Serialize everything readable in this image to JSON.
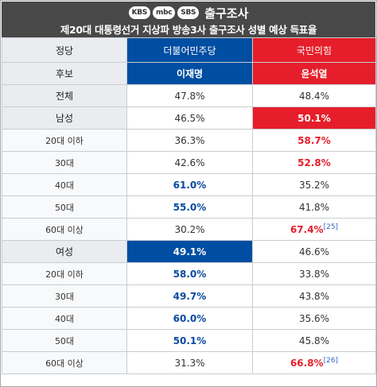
{
  "header": {
    "logos": [
      "KBS",
      "mbc",
      "SBS"
    ],
    "title": "출구조사",
    "subtitle": "제20대 대통령선거 지상파 방송3사 출구조사 성별 예상 득표율"
  },
  "columns": {
    "party_label": "정당",
    "candidate_label": "후보",
    "party_a": "더불어민주당",
    "party_b": "국민의힘",
    "candidate_a": "이재명",
    "candidate_b": "윤석열"
  },
  "rows": [
    {
      "label": "전체",
      "a": "47.8%",
      "b": "48.4%",
      "ref": ""
    },
    {
      "label": "남성",
      "a": "46.5%",
      "b": "50.1%",
      "ref": ""
    },
    {
      "label": "20대 이하",
      "a": "36.3%",
      "b": "58.7%",
      "ref": ""
    },
    {
      "label": "30대",
      "a": "42.6%",
      "b": "52.8%",
      "ref": ""
    },
    {
      "label": "40대",
      "a": "61.0%",
      "b": "35.2%",
      "ref": ""
    },
    {
      "label": "50대",
      "a": "55.0%",
      "b": "41.8%",
      "ref": ""
    },
    {
      "label": "60대 이상",
      "a": "30.2%",
      "b": "67.4%",
      "ref": "[25]"
    },
    {
      "label": "여성",
      "a": "49.1%",
      "b": "46.6%",
      "ref": ""
    },
    {
      "label": "20대 이하",
      "a": "58.0%",
      "b": "33.8%",
      "ref": ""
    },
    {
      "label": "30대",
      "a": "49.7%",
      "b": "43.8%",
      "ref": ""
    },
    {
      "label": "40대",
      "a": "60.0%",
      "b": "35.6%",
      "ref": ""
    },
    {
      "label": "50대",
      "a": "50.1%",
      "b": "45.8%",
      "ref": ""
    },
    {
      "label": "60대 이상",
      "a": "31.3%",
      "b": "66.8%",
      "ref": "[26]"
    }
  ],
  "colors": {
    "party_a": "#004ea2",
    "party_b": "#e61e2b",
    "header_bg": "#484848",
    "label_bg": "#eaecf0"
  }
}
